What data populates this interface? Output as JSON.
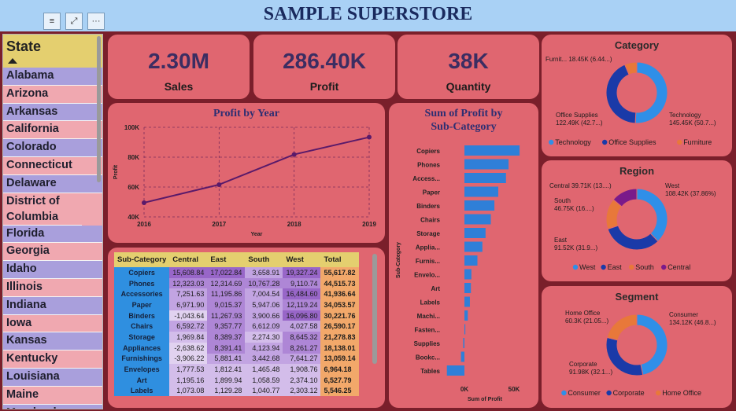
{
  "header": {
    "title": "SAMPLE SUPERSTORE"
  },
  "toolbar": {
    "filter_icon": "≡",
    "focus_icon": "⤢",
    "more_icon": "···"
  },
  "slicer": {
    "title": "State",
    "items": [
      "Alabama",
      "Arizona",
      "Arkansas",
      "California",
      "Colorado",
      "Connecticut",
      "Delaware",
      "District of Columbia",
      "Florida",
      "Georgia",
      "Idaho",
      "Illinois",
      "Indiana",
      "Iowa",
      "Kansas",
      "Kentucky",
      "Louisiana",
      "Maine",
      "Maryland"
    ]
  },
  "kpis": [
    {
      "value": "2.30M",
      "label": "Sales"
    },
    {
      "value": "286.40K",
      "label": "Profit"
    },
    {
      "value": "38K",
      "label": "Quantity"
    }
  ],
  "profit_by_year": {
    "title": "Profit by Year",
    "chart_data": {
      "type": "line",
      "x": [
        "2016",
        "2017",
        "2018",
        "2019"
      ],
      "values": [
        49.5,
        61.6,
        81.8,
        93.4
      ],
      "yticks": [
        "100K",
        "80K",
        "60K",
        "40K"
      ],
      "ylim": [
        40,
        100
      ],
      "xlabel": "Year",
      "ylabel": "Profit",
      "color": "#5a1a6a"
    }
  },
  "matrix": {
    "headers": [
      "Sub-Category",
      "Central",
      "East",
      "South",
      "West",
      "Total"
    ],
    "rows": [
      [
        "Copiers",
        "15,608.84",
        "17,022.84",
        "3,658.91",
        "19,327.24",
        "55,617.82"
      ],
      [
        "Phones",
        "12,323.03",
        "12,314.69",
        "10,767.28",
        "9,110.74",
        "44,515.73"
      ],
      [
        "Accessories",
        "7,251.63",
        "11,195.86",
        "7,004.54",
        "16,484.60",
        "41,936.64"
      ],
      [
        "Paper",
        "6,971.90",
        "9,015.37",
        "5,947.06",
        "12,119.24",
        "34,053.57"
      ],
      [
        "Binders",
        "-1,043.64",
        "11,267.93",
        "3,900.66",
        "16,096.80",
        "30,221.76"
      ],
      [
        "Chairs",
        "6,592.72",
        "9,357.77",
        "6,612.09",
        "4,027.58",
        "26,590.17"
      ],
      [
        "Storage",
        "1,969.84",
        "8,389.37",
        "2,274.30",
        "8,645.32",
        "21,278.83"
      ],
      [
        "Appliances",
        "-2,638.62",
        "8,391.41",
        "4,123.94",
        "8,261.27",
        "18,138.01"
      ],
      [
        "Furnishings",
        "-3,906.22",
        "5,881.41",
        "3,442.68",
        "7,641.27",
        "13,059.14"
      ],
      [
        "Envelopes",
        "1,777.53",
        "1,812.41",
        "1,465.48",
        "1,908.76",
        "6,964.18"
      ],
      [
        "Art",
        "1,195.16",
        "1,899.94",
        "1,058.59",
        "2,374.10",
        "6,527.79"
      ],
      [
        "Labels",
        "1,073.08",
        "1,129.28",
        "1,040.77",
        "2,303.12",
        "5,546.25"
      ]
    ]
  },
  "subcat_profit": {
    "title_line1": "Sum of Profit by",
    "title_line2": "Sub-Category",
    "chart_data": {
      "type": "bar",
      "categories": [
        "Copiers",
        "Phones",
        "Access...",
        "Paper",
        "Binders",
        "Chairs",
        "Storage",
        "Applia...",
        "Furnis...",
        "Envelo...",
        "Art",
        "Labels",
        "Machi...",
        "Fasten...",
        "Supplies",
        "Bookc...",
        "Tables"
      ],
      "values": [
        55.6,
        44.5,
        41.9,
        34.1,
        30.2,
        26.6,
        21.3,
        18.1,
        13.1,
        7.0,
        6.5,
        5.5,
        3.4,
        0.9,
        -1.2,
        -3.5,
        -17.7
      ],
      "xticks": [
        "0K",
        "50K"
      ],
      "xlabel": "Sum of Profit",
      "ylabel": "Sub-Category",
      "color": "#2f7fd8"
    }
  },
  "category": {
    "title": "Category",
    "labels": [
      {
        "line1": "Furnit... 18.45K (6.44...)",
        "line2": ""
      },
      {
        "line1": "Office Supplies",
        "line2": "122.49K (42.7...)"
      },
      {
        "line1": "Technology",
        "line2": "145.45K (50.7...)"
      }
    ],
    "chart_data": {
      "type": "pie",
      "series": [
        "Technology",
        "Office Supplies",
        "Furniture"
      ],
      "values": [
        145.45,
        122.49,
        18.45
      ],
      "colors": [
        "#2f8fe8",
        "#1a3aa8",
        "#e8783a"
      ]
    },
    "legend": [
      "Technology",
      "Office Supplies",
      "Furniture"
    ]
  },
  "region": {
    "title": "Region",
    "labels": [
      {
        "line1": "Central 39.71K (13....)",
        "line2": ""
      },
      {
        "line1": "West",
        "line2": "108.42K (37.86%)"
      },
      {
        "line1": "South",
        "line2": "46.75K (16....)"
      },
      {
        "line1": "East",
        "line2": "91.52K (31.9...)"
      }
    ],
    "chart_data": {
      "type": "pie",
      "series": [
        "West",
        "East",
        "South",
        "Central"
      ],
      "values": [
        108.42,
        91.52,
        46.75,
        39.71
      ],
      "colors": [
        "#2f8fe8",
        "#1a3aa8",
        "#e8783a",
        "#7a1a8a"
      ]
    },
    "legend": [
      "West",
      "East",
      "South",
      "Central"
    ]
  },
  "segment": {
    "title": "Segment",
    "labels": [
      {
        "line1": "Home Office",
        "line2": "60.3K (21.05...)"
      },
      {
        "line1": "Consumer",
        "line2": "134.12K (46.8...)"
      },
      {
        "line1": "Corporate",
        "line2": "91.98K (32.1...)"
      }
    ],
    "chart_data": {
      "type": "pie",
      "series": [
        "Consumer",
        "Corporate",
        "Home Office"
      ],
      "values": [
        134.12,
        91.98,
        60.3
      ],
      "colors": [
        "#2f8fe8",
        "#1a3aa8",
        "#e8783a"
      ]
    },
    "legend": [
      "Consumer",
      "Corporate",
      "Home Office"
    ]
  }
}
